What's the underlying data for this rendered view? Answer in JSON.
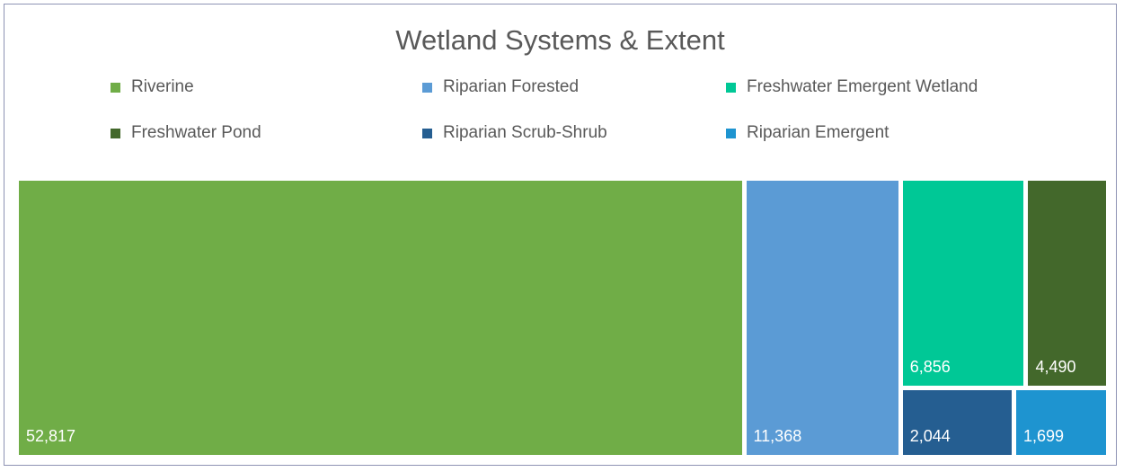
{
  "chart_data": {
    "type": "treemap",
    "title": "Wetland Systems & Extent",
    "legend_position": "top",
    "series": [
      {
        "name": "Riverine",
        "value": 52817,
        "label": "52,817",
        "color": "#70ad47"
      },
      {
        "name": "Riparian Forested",
        "value": 11368,
        "label": "11,368",
        "color": "#5b9bd5"
      },
      {
        "name": "Freshwater Emergent Wetland",
        "value": 6856,
        "label": "6,856",
        "color": "#00c896"
      },
      {
        "name": "Freshwater Pond",
        "value": 4490,
        "label": "4,490",
        "color": "#43682b"
      },
      {
        "name": "Riparian Scrub-Shrub",
        "value": 2044,
        "label": "2,044",
        "color": "#255e91"
      },
      {
        "name": "Riparian Emergent",
        "value": 1699,
        "label": "1,699",
        "color": "#1e94d0"
      }
    ]
  }
}
